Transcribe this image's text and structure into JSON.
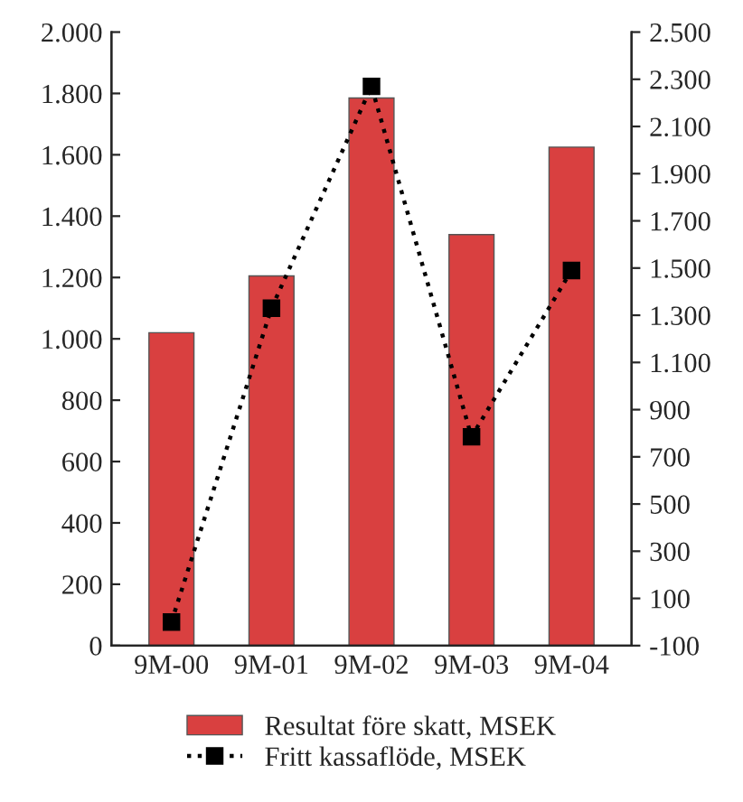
{
  "chart_data": {
    "type": "bar",
    "categories": [
      "9M-00",
      "9M-01",
      "9M-02",
      "9M-03",
      "9M-04"
    ],
    "series": [
      {
        "name": "Resultat före skatt, MSEK",
        "color": "#d94040",
        "values": [
          1020,
          1205,
          1785,
          1340,
          1625
        ]
      },
      {
        "name": "Fritt kassaflöde, MSEK",
        "type": "line",
        "axis": "y2",
        "color": "#000000",
        "marker": "square",
        "line_style": "dotted",
        "values": [
          0,
          1330,
          2270,
          785,
          1490
        ]
      }
    ],
    "ylim": [
      0,
      2000
    ],
    "yticks": [
      0,
      200,
      400,
      600,
      800,
      {
        "value": 1000,
        "label": "1.000"
      },
      {
        "value": 1200,
        "label": "1.200"
      },
      {
        "value": 1400,
        "label": "1.400"
      },
      {
        "value": 1600,
        "label": "1.600"
      },
      {
        "value": 1800,
        "label": "1.800"
      },
      {
        "value": 2000,
        "label": "2.000"
      }
    ],
    "y2lim": [
      -100,
      2500
    ],
    "y2ticks": [
      -100,
      100,
      300,
      500,
      700,
      900,
      {
        "value": 1100,
        "label": "1.100"
      },
      {
        "value": 1300,
        "label": "1.300"
      },
      {
        "value": 1500,
        "label": "1.500"
      },
      {
        "value": 1700,
        "label": "1.700"
      },
      {
        "value": 1900,
        "label": "1.900"
      },
      {
        "value": 2100,
        "label": "2.100"
      },
      {
        "value": 2300,
        "label": "2.300"
      },
      {
        "value": 2500,
        "label": "2.500"
      }
    ],
    "legend": "bottom",
    "grid": false
  }
}
